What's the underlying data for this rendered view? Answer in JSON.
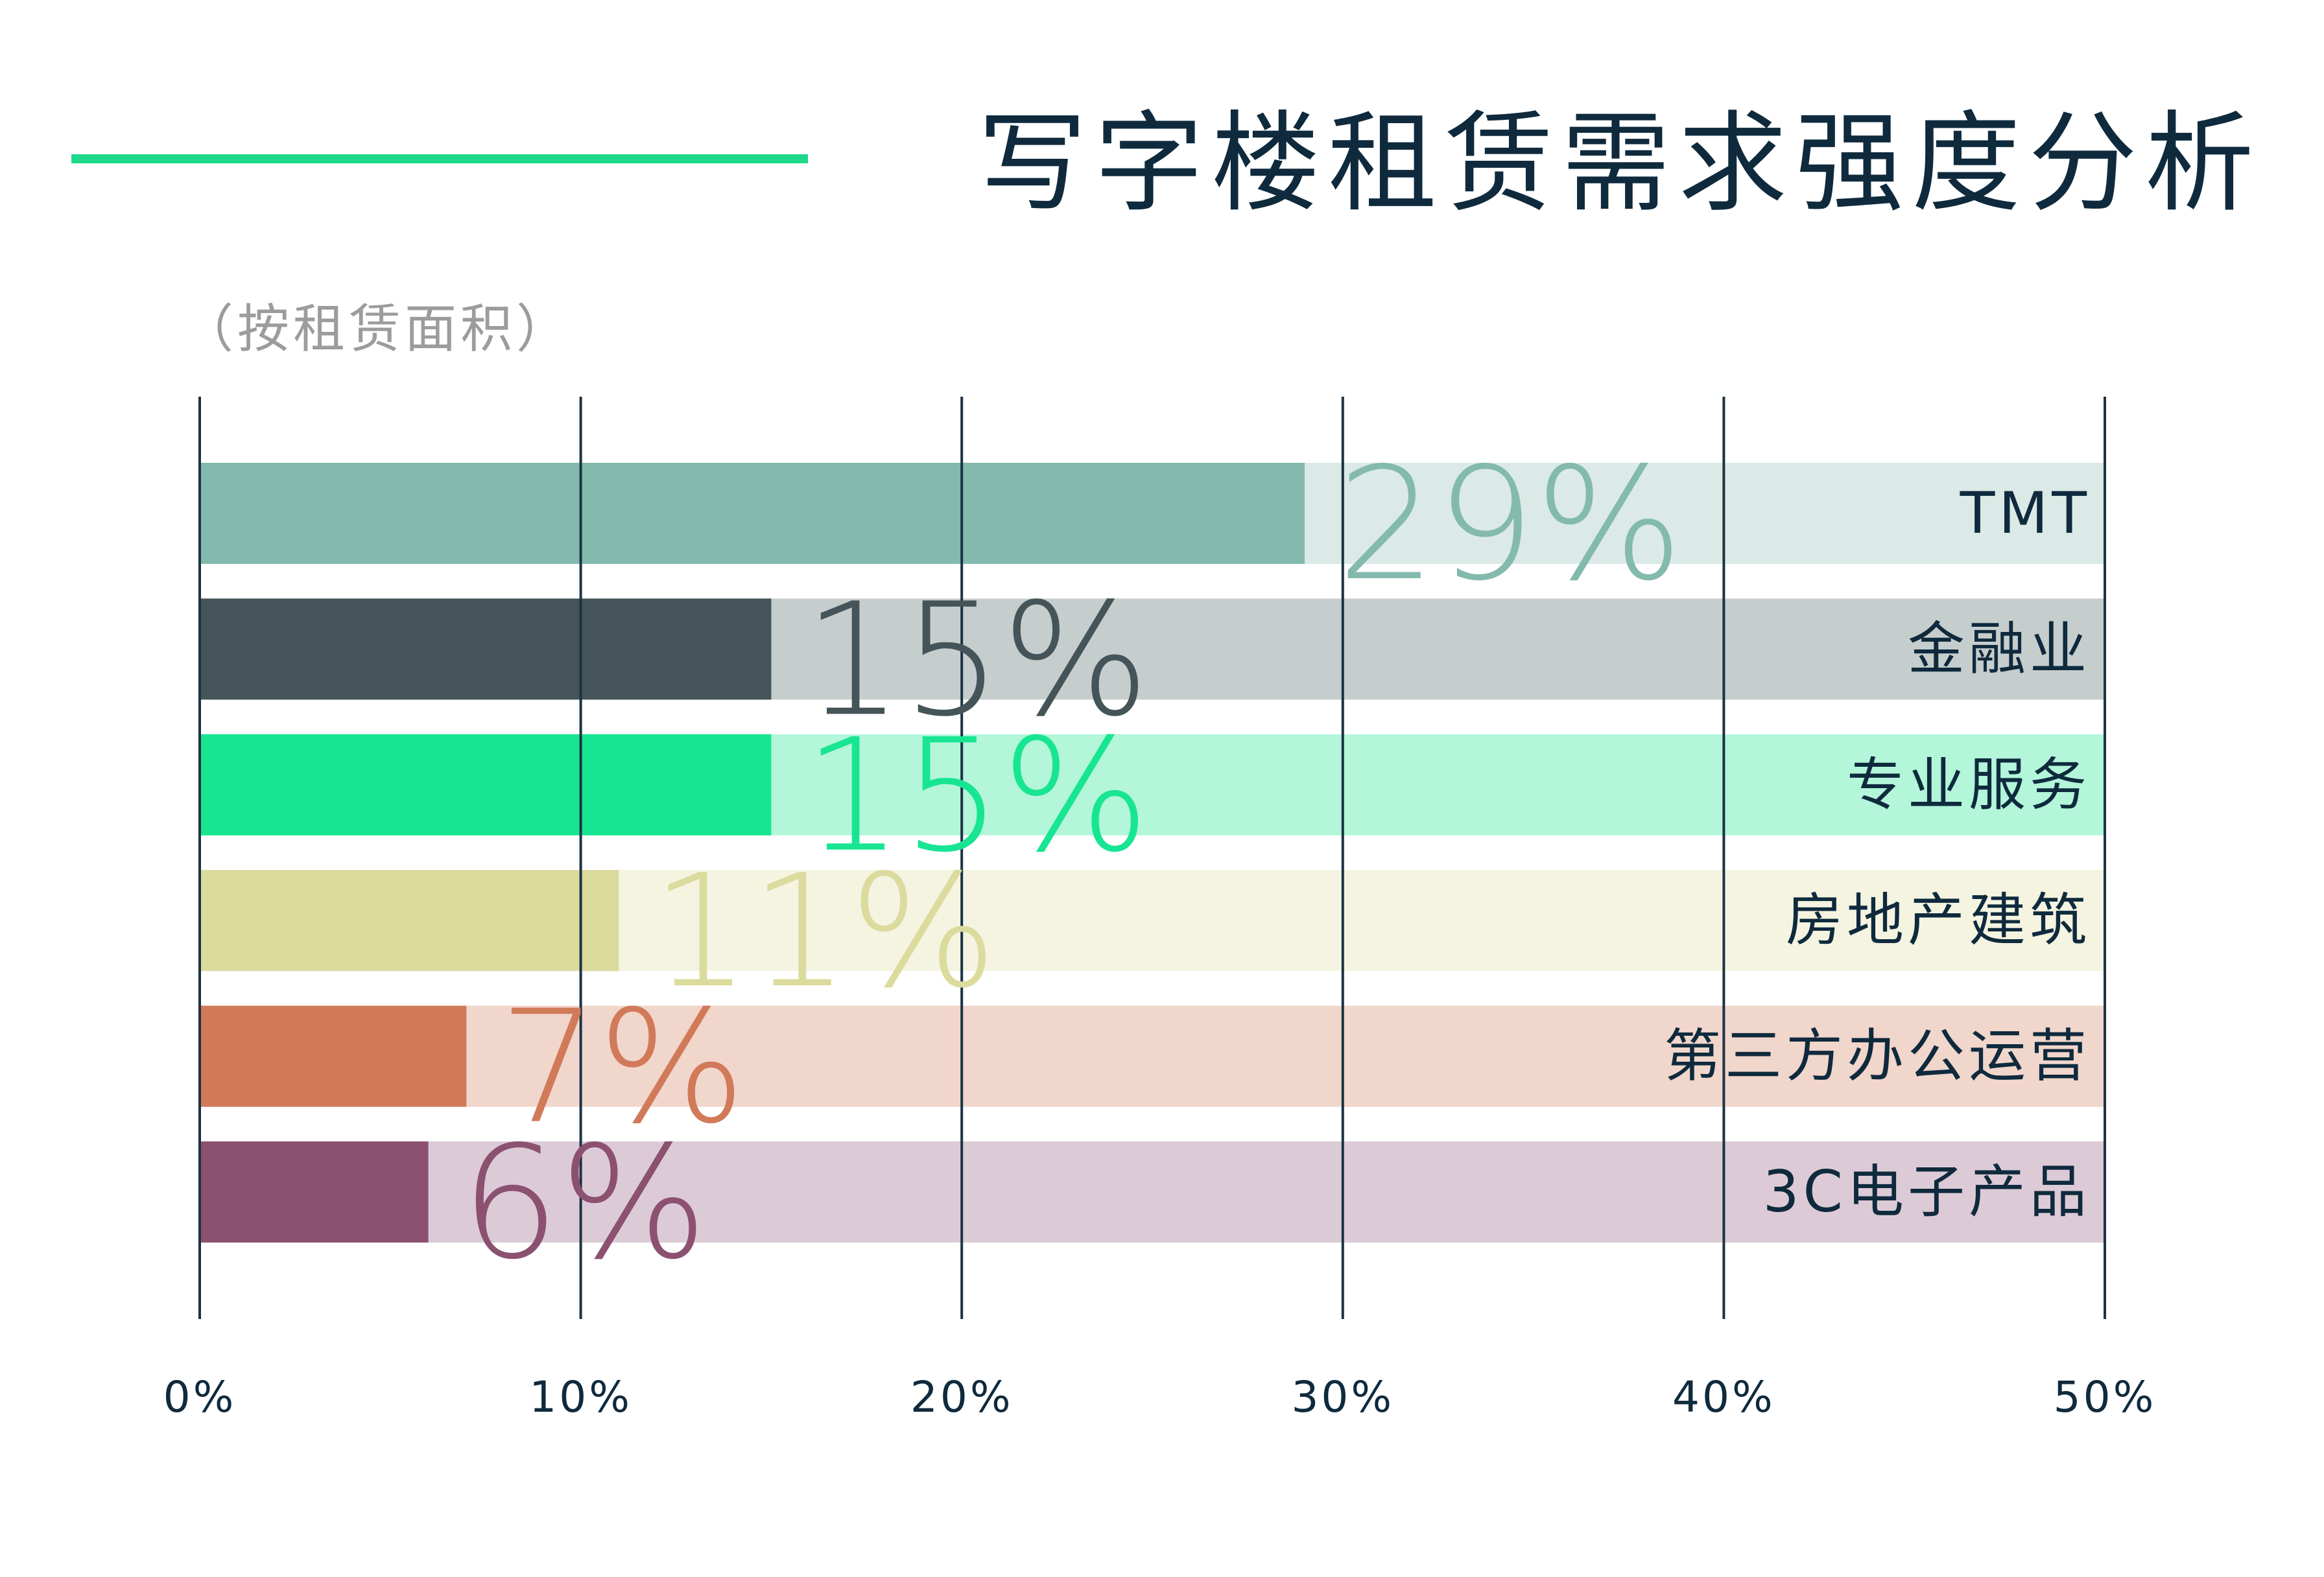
{
  "page": {
    "title": "写字楼租赁需求强度分析",
    "subtitle": "（按租赁面积）",
    "accent_color": "#1ed88b",
    "title_color": "#0f2a3d"
  },
  "chart_data": {
    "type": "bar",
    "orientation": "horizontal",
    "categories": [
      "TMT",
      "金融业",
      "专业服务",
      "房地产建筑",
      "第三方办公运营",
      "3C电子产品"
    ],
    "values": [
      29,
      15,
      15,
      11,
      7,
      6
    ],
    "value_labels": [
      "29%",
      "15%",
      "15%",
      "11%",
      "7%",
      "6%"
    ],
    "colors": [
      "#83baad",
      "#455458",
      "#18e592",
      "#dcdb9e",
      "#d17a59",
      "#8c5170"
    ],
    "track_colors": [
      "#dbeae6",
      "#c6cdcd",
      "#b3f6da",
      "#f4f4e1",
      "#f1d6cc",
      "#dccbd6"
    ],
    "xlim": [
      0,
      50
    ],
    "x_ticks": [
      0,
      10,
      20,
      30,
      40,
      50
    ],
    "x_tick_labels": [
      "0%",
      "10%",
      "20%",
      "30%",
      "40%",
      "50%"
    ],
    "grid": true,
    "xlabel": "",
    "ylabel": ""
  }
}
